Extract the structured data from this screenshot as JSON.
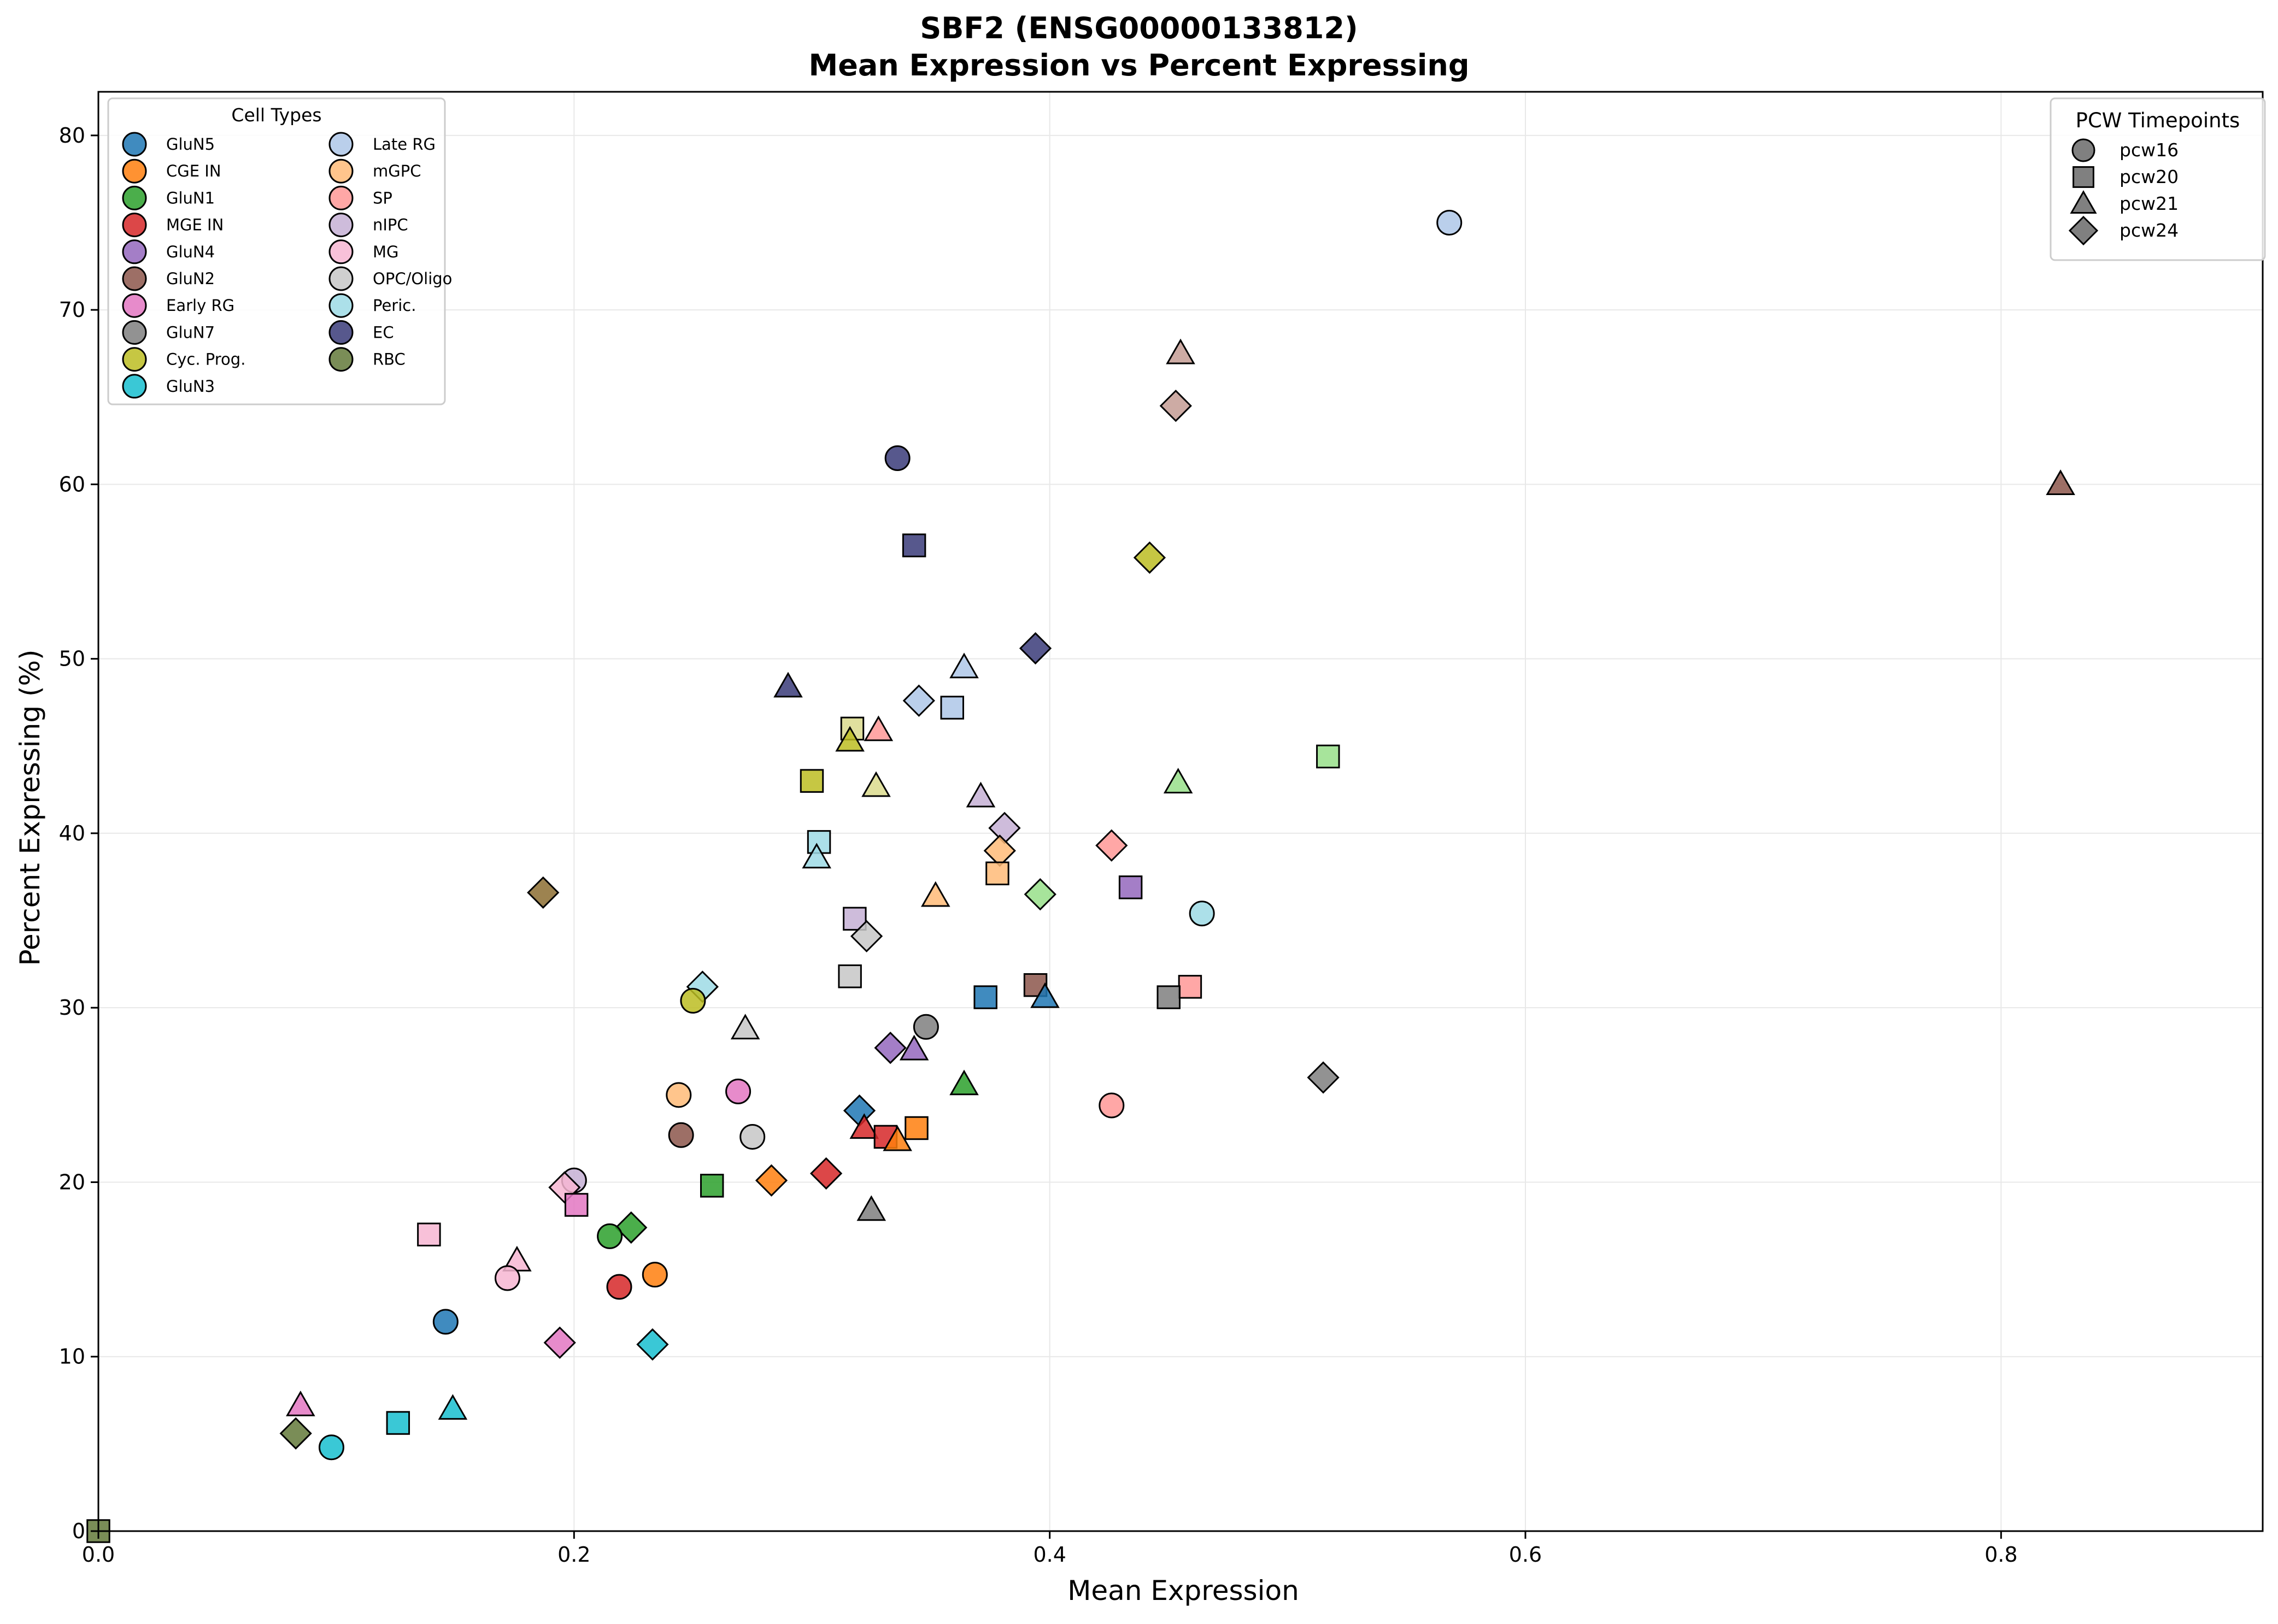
{
  "chart_data": {
    "type": "scatter",
    "title_line1": "SBF2 (ENSG00000133812)",
    "title_line2": "Mean Expression vs Percent Expressing",
    "xlabel": "Mean Expression",
    "ylabel": "Percent Expressing (%)",
    "xlim": [
      0,
      0.91
    ],
    "ylim": [
      0,
      82.5
    ],
    "xticks": [
      0.0,
      0.2,
      0.4,
      0.6,
      0.8
    ],
    "xtick_labels": [
      "0.0",
      "0.2",
      "0.4",
      "0.6",
      "0.8"
    ],
    "yticks": [
      0,
      10,
      20,
      30,
      40,
      50,
      60,
      70,
      80
    ],
    "ytick_labels": [
      "0",
      "10",
      "20",
      "30",
      "40",
      "50",
      "60",
      "70",
      "80"
    ],
    "grid": true,
    "cell_legend": {
      "title": "Cell Types",
      "placement": "top-left",
      "entries": [
        {
          "name": "GluN5",
          "color": "#1f77b4"
        },
        {
          "name": "CGE IN",
          "color": "#ff7f0e"
        },
        {
          "name": "GluN1",
          "color": "#2ca02c"
        },
        {
          "name": "MGE IN",
          "color": "#d62728"
        },
        {
          "name": "GluN4",
          "color": "#9467bd"
        },
        {
          "name": "GluN2",
          "color": "#8c564b"
        },
        {
          "name": "Early RG",
          "color": "#e377c2"
        },
        {
          "name": "GluN7",
          "color": "#7f7f7f"
        },
        {
          "name": "Cyc. Prog.",
          "color": "#bcbd22"
        },
        {
          "name": "GluN3",
          "color": "#17becf"
        },
        {
          "name": "Late RG",
          "color": "#aec7e8"
        },
        {
          "name": "mGPC",
          "color": "#ffbb78"
        },
        {
          "name": "SP",
          "color": "#ff9896"
        },
        {
          "name": "nIPC",
          "color": "#c5b0d5"
        },
        {
          "name": "MG",
          "color": "#f7b6d2"
        },
        {
          "name": "OPC/Oligo",
          "color": "#c7c7c7"
        },
        {
          "name": "Peric.",
          "color": "#9edae5"
        },
        {
          "name": "EC",
          "color": "#393b79"
        },
        {
          "name": "RBC",
          "color": "#637939"
        }
      ]
    },
    "pcw_legend": {
      "title": "PCW Timepoints",
      "placement": "top-right",
      "entries": [
        {
          "name": "pcw16",
          "marker": "circle"
        },
        {
          "name": "pcw20",
          "marker": "square"
        },
        {
          "name": "pcw21",
          "marker": "triangle"
        },
        {
          "name": "pcw24",
          "marker": "diamond"
        }
      ],
      "marker_color": "#808080"
    },
    "points": [
      {
        "x": 0.568,
        "y": 75.0,
        "marker": "circle",
        "color": "#aec7e8"
      },
      {
        "x": 0.455,
        "y": 67.5,
        "marker": "triangle",
        "color": "#c49c94"
      },
      {
        "x": 0.453,
        "y": 64.5,
        "marker": "diamond",
        "color": "#c49c94"
      },
      {
        "x": 0.825,
        "y": 60.0,
        "marker": "triangle",
        "color": "#8c564b"
      },
      {
        "x": 0.336,
        "y": 61.5,
        "marker": "circle",
        "color": "#393b79"
      },
      {
        "x": 0.343,
        "y": 56.5,
        "marker": "square",
        "color": "#393b79"
      },
      {
        "x": 0.442,
        "y": 55.8,
        "marker": "diamond",
        "color": "#bcbd22"
      },
      {
        "x": 0.394,
        "y": 50.6,
        "marker": "diamond",
        "color": "#393b79"
      },
      {
        "x": 0.364,
        "y": 49.5,
        "marker": "triangle",
        "color": "#aec7e8"
      },
      {
        "x": 0.29,
        "y": 48.4,
        "marker": "triangle",
        "color": "#393b79"
      },
      {
        "x": 0.345,
        "y": 47.6,
        "marker": "diamond",
        "color": "#aec7e8"
      },
      {
        "x": 0.359,
        "y": 47.2,
        "marker": "square",
        "color": "#aec7e8"
      },
      {
        "x": 0.317,
        "y": 46.0,
        "marker": "square",
        "color": "#dbdb8d"
      },
      {
        "x": 0.328,
        "y": 45.9,
        "marker": "triangle",
        "color": "#ff9896"
      },
      {
        "x": 0.316,
        "y": 45.3,
        "marker": "triangle",
        "color": "#bcbd22"
      },
      {
        "x": 0.517,
        "y": 44.4,
        "marker": "square",
        "color": "#98df8a"
      },
      {
        "x": 0.3,
        "y": 43.0,
        "marker": "square",
        "color": "#bcbd22"
      },
      {
        "x": 0.454,
        "y": 42.9,
        "marker": "triangle",
        "color": "#98df8a"
      },
      {
        "x": 0.327,
        "y": 42.7,
        "marker": "triangle",
        "color": "#dbdb8d"
      },
      {
        "x": 0.371,
        "y": 42.1,
        "marker": "triangle",
        "color": "#c5b0d5"
      },
      {
        "x": 0.381,
        "y": 40.3,
        "marker": "diamond",
        "color": "#c5b0d5"
      },
      {
        "x": 0.303,
        "y": 39.5,
        "marker": "square",
        "color": "#9edae5"
      },
      {
        "x": 0.426,
        "y": 39.3,
        "marker": "diamond",
        "color": "#ff9896"
      },
      {
        "x": 0.379,
        "y": 39.0,
        "marker": "diamond",
        "color": "#ffbb78"
      },
      {
        "x": 0.302,
        "y": 38.6,
        "marker": "triangle",
        "color": "#9edae5"
      },
      {
        "x": 0.378,
        "y": 37.7,
        "marker": "square",
        "color": "#ffbb78"
      },
      {
        "x": 0.434,
        "y": 36.9,
        "marker": "square",
        "color": "#9467bd"
      },
      {
        "x": 0.187,
        "y": 36.6,
        "marker": "diamond",
        "color": "#8c6d31"
      },
      {
        "x": 0.396,
        "y": 36.5,
        "marker": "diamond",
        "color": "#98df8a"
      },
      {
        "x": 0.352,
        "y": 36.4,
        "marker": "triangle",
        "color": "#ffbb78"
      },
      {
        "x": 0.464,
        "y": 35.4,
        "marker": "circle",
        "color": "#9edae5"
      },
      {
        "x": 0.318,
        "y": 35.1,
        "marker": "square",
        "color": "#c5b0d5"
      },
      {
        "x": 0.323,
        "y": 34.1,
        "marker": "diamond",
        "color": "#c7c7c7"
      },
      {
        "x": 0.316,
        "y": 31.8,
        "marker": "square",
        "color": "#c7c7c7"
      },
      {
        "x": 0.394,
        "y": 31.3,
        "marker": "square",
        "color": "#8c564b"
      },
      {
        "x": 0.254,
        "y": 31.2,
        "marker": "diamond",
        "color": "#9edae5"
      },
      {
        "x": 0.459,
        "y": 31.2,
        "marker": "square",
        "color": "#ff9896"
      },
      {
        "x": 0.373,
        "y": 30.6,
        "marker": "square",
        "color": "#1f77b4"
      },
      {
        "x": 0.45,
        "y": 30.6,
        "marker": "square",
        "color": "#7f7f7f"
      },
      {
        "x": 0.398,
        "y": 30.6,
        "marker": "triangle",
        "color": "#1f77b4"
      },
      {
        "x": 0.25,
        "y": 30.4,
        "marker": "circle",
        "color": "#bcbd22"
      },
      {
        "x": 0.348,
        "y": 28.9,
        "marker": "circle",
        "color": "#7f7f7f"
      },
      {
        "x": 0.272,
        "y": 28.8,
        "marker": "triangle",
        "color": "#c7c7c7"
      },
      {
        "x": 0.333,
        "y": 27.7,
        "marker": "diamond",
        "color": "#9467bd"
      },
      {
        "x": 0.343,
        "y": 27.6,
        "marker": "triangle",
        "color": "#9467bd"
      },
      {
        "x": 0.515,
        "y": 26.0,
        "marker": "diamond",
        "color": "#7f7f7f"
      },
      {
        "x": 0.364,
        "y": 25.6,
        "marker": "triangle",
        "color": "#2ca02c"
      },
      {
        "x": 0.269,
        "y": 25.2,
        "marker": "circle",
        "color": "#e377c2"
      },
      {
        "x": 0.244,
        "y": 25.0,
        "marker": "circle",
        "color": "#ffbb78"
      },
      {
        "x": 0.426,
        "y": 24.4,
        "marker": "circle",
        "color": "#ff9896"
      },
      {
        "x": 0.32,
        "y": 24.1,
        "marker": "diamond",
        "color": "#1f77b4"
      },
      {
        "x": 0.322,
        "y": 23.1,
        "marker": "triangle",
        "color": "#d62728"
      },
      {
        "x": 0.344,
        "y": 23.1,
        "marker": "square",
        "color": "#ff7f0e"
      },
      {
        "x": 0.245,
        "y": 22.7,
        "marker": "circle",
        "color": "#8c564b"
      },
      {
        "x": 0.275,
        "y": 22.6,
        "marker": "circle",
        "color": "#c7c7c7"
      },
      {
        "x": 0.331,
        "y": 22.6,
        "marker": "square",
        "color": "#d62728"
      },
      {
        "x": 0.336,
        "y": 22.4,
        "marker": "triangle",
        "color": "#ff7f0e"
      },
      {
        "x": 0.306,
        "y": 20.5,
        "marker": "diamond",
        "color": "#d62728"
      },
      {
        "x": 0.283,
        "y": 20.1,
        "marker": "diamond",
        "color": "#ff7f0e"
      },
      {
        "x": 0.2,
        "y": 20.1,
        "marker": "circle",
        "color": "#c5b0d5"
      },
      {
        "x": 0.258,
        "y": 19.8,
        "marker": "square",
        "color": "#2ca02c"
      },
      {
        "x": 0.196,
        "y": 19.7,
        "marker": "diamond",
        "color": "#f7b6d2"
      },
      {
        "x": 0.201,
        "y": 18.7,
        "marker": "square",
        "color": "#e377c2"
      },
      {
        "x": 0.325,
        "y": 18.4,
        "marker": "triangle",
        "color": "#7f7f7f"
      },
      {
        "x": 0.224,
        "y": 17.4,
        "marker": "diamond",
        "color": "#2ca02c"
      },
      {
        "x": 0.139,
        "y": 17.0,
        "marker": "square",
        "color": "#f7b6d2"
      },
      {
        "x": 0.215,
        "y": 16.9,
        "marker": "circle",
        "color": "#2ca02c"
      },
      {
        "x": 0.176,
        "y": 15.5,
        "marker": "triangle",
        "color": "#f7b6d2"
      },
      {
        "x": 0.234,
        "y": 14.7,
        "marker": "circle",
        "color": "#ff7f0e"
      },
      {
        "x": 0.172,
        "y": 14.5,
        "marker": "circle",
        "color": "#f7b6d2"
      },
      {
        "x": 0.219,
        "y": 14.0,
        "marker": "circle",
        "color": "#d62728"
      },
      {
        "x": 0.146,
        "y": 12.0,
        "marker": "circle",
        "color": "#1f77b4"
      },
      {
        "x": 0.194,
        "y": 10.8,
        "marker": "diamond",
        "color": "#e377c2"
      },
      {
        "x": 0.233,
        "y": 10.7,
        "marker": "diamond",
        "color": "#17becf"
      },
      {
        "x": 0.085,
        "y": 7.2,
        "marker": "triangle",
        "color": "#e377c2"
      },
      {
        "x": 0.149,
        "y": 7.0,
        "marker": "triangle",
        "color": "#17becf"
      },
      {
        "x": 0.126,
        "y": 6.2,
        "marker": "square",
        "color": "#17becf"
      },
      {
        "x": 0.083,
        "y": 5.6,
        "marker": "diamond",
        "color": "#637939"
      },
      {
        "x": 0.098,
        "y": 4.8,
        "marker": "circle",
        "color": "#17becf"
      },
      {
        "x": 0.0,
        "y": 0.0,
        "marker": "square",
        "color": "#637939"
      }
    ]
  }
}
